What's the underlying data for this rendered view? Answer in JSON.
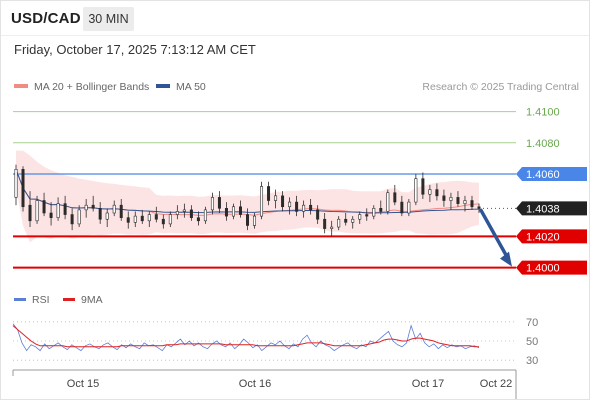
{
  "header": {
    "symbol": "USD/CAD",
    "timeframe": "30 MIN",
    "datetime": "Friday, October 17, 2025 7:13:12 AM CET"
  },
  "legend": {
    "ma20_label": "MA 20 + Bollinger Bands",
    "ma20_color": "#f28b82",
    "ma50_label": "MA 50",
    "ma50_color": "#2f5597",
    "copyright": "Research © 2025 Trading Central"
  },
  "rsi_legend": {
    "rsi_label": "RSI",
    "rsi_color": "#5b7fd6",
    "ma_label": "9MA",
    "ma_color": "#e02020"
  },
  "chart_data": {
    "type": "candlestick",
    "x_ticks": [
      "Oct 15",
      "Oct 16",
      "Oct 17",
      "Oct 22"
    ],
    "price_ylim": [
      1.3985,
      1.411
    ],
    "levels": [
      {
        "label": "1.4100",
        "value": 1.41,
        "style": "resistance-minor",
        "color": "#a9d18e"
      },
      {
        "label": "1.4080",
        "value": 1.408,
        "style": "resistance-minor",
        "color": "#a9d18e"
      },
      {
        "label": "1.4060",
        "value": 1.406,
        "style": "pivot",
        "color": "#4a86e8"
      },
      {
        "label": "1.4038",
        "value": 1.4038,
        "style": "last-price",
        "color": "#222222"
      },
      {
        "label": "1.4020",
        "value": 1.402,
        "style": "support",
        "color": "#e00000"
      },
      {
        "label": "1.4000",
        "value": 1.4,
        "style": "support",
        "color": "#e00000"
      }
    ],
    "projection": {
      "from": 1.4038,
      "to": 1.4,
      "color": "#2f5597"
    },
    "ohlc_sample": [
      [
        1.4045,
        1.4066,
        1.404,
        1.4063
      ],
      [
        1.4063,
        1.4065,
        1.4036,
        1.4039
      ],
      [
        1.404,
        1.4049,
        1.4026,
        1.403
      ],
      [
        1.403,
        1.4046,
        1.4028,
        1.4043
      ],
      [
        1.4043,
        1.4048,
        1.4033,
        1.4035
      ],
      [
        1.4035,
        1.4042,
        1.4027,
        1.4032
      ],
      [
        1.4032,
        1.4045,
        1.403,
        1.4041
      ],
      [
        1.4041,
        1.4046,
        1.4031,
        1.4034
      ],
      [
        1.4034,
        1.4038,
        1.4024,
        1.4028
      ],
      [
        1.4028,
        1.404,
        1.4026,
        1.4037
      ],
      [
        1.4037,
        1.4044,
        1.4032,
        1.404
      ],
      [
        1.404,
        1.4046,
        1.4036,
        1.4038
      ],
      [
        1.4038,
        1.4042,
        1.4028,
        1.4031
      ],
      [
        1.4031,
        1.4038,
        1.4026,
        1.4035
      ],
      [
        1.4035,
        1.4043,
        1.4033,
        1.404
      ],
      [
        1.404,
        1.4044,
        1.403,
        1.4032
      ],
      [
        1.4032,
        1.4036,
        1.4025,
        1.4029
      ],
      [
        1.4029,
        1.4036,
        1.4026,
        1.4033
      ],
      [
        1.4033,
        1.4037,
        1.4028,
        1.403
      ],
      [
        1.403,
        1.4036,
        1.4026,
        1.4034
      ],
      [
        1.4034,
        1.4039,
        1.4029,
        1.4031
      ],
      [
        1.4031,
        1.4034,
        1.4025,
        1.4028
      ],
      [
        1.4028,
        1.4036,
        1.4026,
        1.4034
      ],
      [
        1.4034,
        1.404,
        1.4031,
        1.4036
      ],
      [
        1.4036,
        1.4041,
        1.4032,
        1.4037
      ],
      [
        1.4037,
        1.404,
        1.403,
        1.4032
      ],
      [
        1.4032,
        1.4036,
        1.4027,
        1.403
      ],
      [
        1.403,
        1.4039,
        1.4028,
        1.4037
      ],
      [
        1.4037,
        1.4048,
        1.4034,
        1.4045
      ],
      [
        1.4045,
        1.4049,
        1.4035,
        1.4038
      ],
      [
        1.4038,
        1.4042,
        1.403,
        1.4033
      ],
      [
        1.4033,
        1.4041,
        1.4031,
        1.4039
      ],
      [
        1.4039,
        1.4043,
        1.4032,
        1.4034
      ],
      [
        1.4034,
        1.4038,
        1.4024,
        1.4027
      ],
      [
        1.4027,
        1.4035,
        1.4025,
        1.4033
      ],
      [
        1.4033,
        1.4055,
        1.4031,
        1.4052
      ],
      [
        1.4052,
        1.4055,
        1.404,
        1.4043
      ],
      [
        1.4043,
        1.405,
        1.4038,
        1.4046
      ],
      [
        1.4046,
        1.4049,
        1.4036,
        1.4039
      ],
      [
        1.4039,
        1.4045,
        1.4034,
        1.4042
      ],
      [
        1.4042,
        1.4046,
        1.4033,
        1.4036
      ],
      [
        1.4036,
        1.4043,
        1.4032,
        1.404
      ],
      [
        1.404,
        1.4044,
        1.4034,
        1.4037
      ],
      [
        1.4037,
        1.404,
        1.4028,
        1.4031
      ],
      [
        1.4031,
        1.4035,
        1.4022,
        1.4025
      ],
      [
        1.4025,
        1.403,
        1.402,
        1.4026
      ],
      [
        1.4026,
        1.4033,
        1.4024,
        1.4031
      ],
      [
        1.4031,
        1.4035,
        1.4027,
        1.4029
      ],
      [
        1.4029,
        1.4033,
        1.4025,
        1.4031
      ],
      [
        1.4031,
        1.4036,
        1.4028,
        1.4034
      ],
      [
        1.4034,
        1.4038,
        1.403,
        1.4033
      ],
      [
        1.4033,
        1.404,
        1.4031,
        1.4038
      ],
      [
        1.4038,
        1.4043,
        1.4034,
        1.4036
      ],
      [
        1.4036,
        1.405,
        1.4034,
        1.4048
      ],
      [
        1.4048,
        1.4053,
        1.404,
        1.4042
      ],
      [
        1.4042,
        1.4046,
        1.4033,
        1.4035
      ],
      [
        1.4035,
        1.4044,
        1.4033,
        1.4042
      ],
      [
        1.4042,
        1.406,
        1.404,
        1.4057
      ],
      [
        1.4057,
        1.4061,
        1.4044,
        1.4047
      ],
      [
        1.4047,
        1.4053,
        1.4042,
        1.405
      ],
      [
        1.405,
        1.4054,
        1.4043,
        1.4046
      ],
      [
        1.4046,
        1.405,
        1.4039,
        1.4043
      ],
      [
        1.4043,
        1.4048,
        1.4037,
        1.4045
      ],
      [
        1.4045,
        1.4049,
        1.4039,
        1.4041
      ],
      [
        1.4041,
        1.4046,
        1.4036,
        1.4043
      ],
      [
        1.4043,
        1.4046,
        1.4037,
        1.4039
      ],
      [
        1.4039,
        1.4041,
        1.4035,
        1.4038
      ]
    ],
    "rsi_ylim": [
      25,
      75
    ],
    "rsi_ticks": [
      70,
      50,
      30
    ],
    "rsi_sample": [
      68,
      62,
      48,
      40,
      46,
      44,
      40,
      47,
      42,
      45,
      48,
      44,
      41,
      46,
      43,
      40,
      45,
      47,
      44,
      42,
      46,
      48,
      44,
      41,
      46,
      43,
      47,
      44,
      42,
      48,
      45,
      46,
      43,
      40,
      46,
      44,
      48,
      52,
      46,
      50,
      45,
      48,
      44,
      42,
      47,
      50,
      46,
      44,
      48,
      42,
      46,
      52,
      48,
      43,
      46,
      40,
      44,
      48,
      46,
      50,
      45,
      42,
      47,
      44,
      52,
      56,
      48,
      44,
      50,
      46,
      44,
      40,
      43,
      46,
      48,
      44,
      42,
      46,
      44,
      50,
      48,
      52,
      56,
      60,
      50,
      46,
      44,
      48,
      66,
      52,
      58,
      48,
      44,
      47,
      42,
      46,
      43,
      46,
      44,
      45,
      42,
      44,
      45,
      43
    ],
    "rsi_ma_sample": [
      66,
      62,
      58,
      54,
      50,
      47,
      45,
      45,
      45,
      45,
      45,
      45,
      44,
      44,
      44,
      44,
      44,
      44,
      44,
      44,
      44,
      44,
      44,
      44,
      45,
      45,
      45,
      45,
      45,
      45,
      45,
      45,
      45,
      45,
      46,
      46,
      46,
      47,
      47,
      47,
      47,
      47,
      47,
      47,
      47,
      47,
      47,
      46,
      46,
      46,
      46,
      46,
      46,
      46,
      45,
      45,
      45,
      45,
      45,
      45,
      45,
      45,
      45,
      46,
      47,
      48,
      48,
      48,
      48,
      47,
      46,
      45,
      45,
      45,
      45,
      45,
      45,
      45,
      46,
      47,
      48,
      49,
      51,
      52,
      52,
      51,
      50,
      50,
      52,
      53,
      53,
      52,
      51,
      50,
      48,
      47,
      46,
      45,
      45,
      45,
      45,
      45,
      44,
      44
    ]
  },
  "price_axis": [
    {
      "label": "1.4100",
      "value": 1.41,
      "bg": "none",
      "fg": "#6aa84f"
    },
    {
      "label": "1.4080",
      "value": 1.408,
      "bg": "none",
      "fg": "#6aa84f"
    },
    {
      "label": "1.4060",
      "value": 1.406,
      "bg": "#4a86e8",
      "fg": "#ffffff"
    },
    {
      "label": "1.4038",
      "value": 1.4038,
      "bg": "#222222",
      "fg": "#ffffff"
    },
    {
      "label": "1.4020",
      "value": 1.402,
      "bg": "#e00000",
      "fg": "#ffffff"
    },
    {
      "label": "1.4000",
      "value": 1.4,
      "bg": "#e00000",
      "fg": "#ffffff"
    }
  ]
}
